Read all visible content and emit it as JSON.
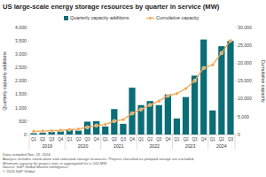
{
  "chart_data": {
    "type": "bar",
    "title": "US large-scale energy storage resources by quarter in service (MW)",
    "y_label": "Quarterly capacity additions",
    "y2_label": "Cumulative capacity",
    "categories": [
      "Q1",
      "Q2",
      "Q3",
      "Q4",
      "Q1",
      "Q2",
      "Q3",
      "Q4",
      "Q1",
      "Q2",
      "Q3",
      "Q4",
      "Q1",
      "Q2",
      "Q3",
      "Q4",
      "Q1",
      "Q2",
      "Q3",
      "Q4",
      "Q1",
      "Q2",
      "Q3"
    ],
    "category_groups": [
      "2019",
      "2020",
      "2021",
      "2022",
      "2023",
      "2024"
    ],
    "series": [
      {
        "name": "Quarterly capacity additions",
        "type": "bar",
        "axis": "y",
        "color": "#0b6d76",
        "values": [
          50,
          70,
          100,
          120,
          200,
          150,
          480,
          500,
          300,
          950,
          400,
          1750,
          1100,
          1250,
          1100,
          1500,
          600,
          1400,
          2200,
          3550,
          900,
          3300,
          3500
        ]
      },
      {
        "name": "Cumulative capacity",
        "type": "line",
        "axis": "y2",
        "color": "#f5a047",
        "marker": "circle",
        "line_style": "solid",
        "values": [
          900,
          970,
          1070,
          1190,
          1390,
          1540,
          2020,
          2520,
          2820,
          3770,
          4170,
          5920,
          7020,
          8270,
          9370,
          10870,
          11470,
          12870,
          15070,
          18620,
          19520,
          22820,
          26320
        ]
      }
    ],
    "ylim": [
      0,
      4000
    ],
    "yticks": [
      0,
      500,
      {
        "value": 1000,
        "label": "1,000"
      },
      {
        "value": 1500,
        "label": "1,500"
      },
      {
        "value": 2000,
        "label": "2,000"
      },
      {
        "value": 2500,
        "label": "2,500"
      },
      {
        "value": 3000,
        "label": "3,000"
      },
      {
        "value": 3500,
        "label": "3,500"
      },
      {
        "value": 4000,
        "label": "4,000"
      }
    ],
    "y2lim": [
      0,
      30000
    ],
    "y2ticks": [
      0,
      {
        "value": 5000,
        "label": "5,000"
      },
      {
        "value": 10000,
        "label": "10,000"
      },
      {
        "value": 15000,
        "label": "15,000"
      },
      {
        "value": 20000,
        "label": "20,000"
      },
      {
        "value": 25000,
        "label": "25,000"
      },
      {
        "value": 30000,
        "label": "30,000"
      }
    ],
    "grid": false,
    "legend": "top",
    "notes": [
      "Data compiled Nov. 25, 2024.",
      "Analysis includes stand-alone and colocated storage resources. Projects classified as pumped storage are excluded.",
      "Minimum capacity for project units in aggregated list is 100 MW.",
      "Source: S&P Global Market Intelligence.",
      "© 2024 S&P Global."
    ]
  }
}
